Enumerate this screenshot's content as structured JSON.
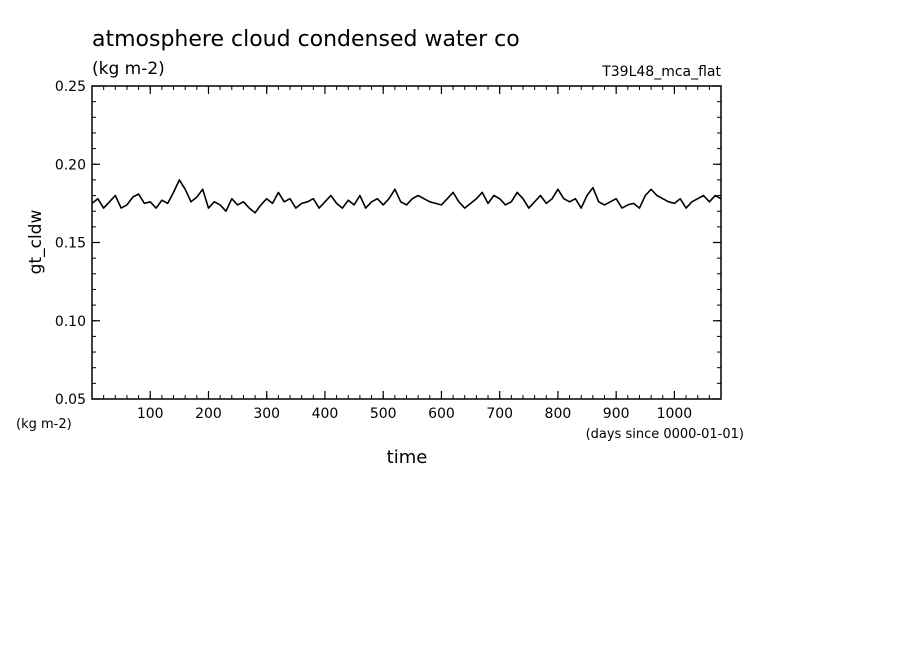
{
  "chart_data": {
    "type": "line",
    "title": "atmosphere cloud condensed water co",
    "subtitle": "(kg m-2)",
    "run_label": "T39L48_mca_flat",
    "xlabel": "time",
    "x_units": "(days since 0000-01-01)",
    "ylabel": "gt_cldw",
    "y_units": "(kg m-2)",
    "xlim": [
      0,
      1080
    ],
    "ylim": [
      0.05,
      0.25
    ],
    "x_ticks": [
      100,
      200,
      300,
      400,
      500,
      600,
      700,
      800,
      900,
      1000
    ],
    "x_tick_labels": [
      "100",
      "200",
      "300",
      "400",
      "500",
      "600",
      "700",
      "800",
      "900",
      "1000"
    ],
    "y_ticks": [
      0.05,
      0.1,
      0.15,
      0.2,
      0.25
    ],
    "y_tick_labels": [
      "0.05",
      "0.10",
      "0.15",
      "0.20",
      "0.25"
    ],
    "grid": false,
    "series": [
      {
        "color": "#000000",
        "x": [
          0,
          10,
          20,
          30,
          40,
          50,
          60,
          70,
          80,
          90,
          100,
          110,
          120,
          130,
          140,
          150,
          160,
          170,
          180,
          190,
          200,
          210,
          220,
          230,
          240,
          250,
          260,
          270,
          280,
          290,
          300,
          310,
          320,
          330,
          340,
          350,
          360,
          370,
          380,
          390,
          400,
          410,
          420,
          430,
          440,
          450,
          460,
          470,
          480,
          490,
          500,
          510,
          520,
          530,
          540,
          550,
          560,
          570,
          580,
          590,
          600,
          610,
          620,
          630,
          640,
          650,
          660,
          670,
          680,
          690,
          700,
          710,
          720,
          730,
          740,
          750,
          760,
          770,
          780,
          790,
          800,
          810,
          820,
          830,
          840,
          850,
          860,
          870,
          880,
          890,
          900,
          910,
          920,
          930,
          940,
          950,
          960,
          970,
          980,
          990,
          1000,
          1010,
          1020,
          1030,
          1040,
          1050,
          1060,
          1070,
          1080
        ],
        "y": [
          0.175,
          0.178,
          0.172,
          0.176,
          0.18,
          0.172,
          0.174,
          0.179,
          0.181,
          0.175,
          0.176,
          0.172,
          0.177,
          0.175,
          0.182,
          0.19,
          0.184,
          0.176,
          0.179,
          0.184,
          0.172,
          0.176,
          0.174,
          0.17,
          0.178,
          0.174,
          0.176,
          0.172,
          0.169,
          0.174,
          0.178,
          0.175,
          0.182,
          0.176,
          0.178,
          0.172,
          0.175,
          0.176,
          0.178,
          0.172,
          0.176,
          0.18,
          0.175,
          0.172,
          0.177,
          0.174,
          0.18,
          0.172,
          0.176,
          0.178,
          0.174,
          0.178,
          0.184,
          0.176,
          0.174,
          0.178,
          0.18,
          0.178,
          0.176,
          0.175,
          0.174,
          0.178,
          0.182,
          0.176,
          0.172,
          0.175,
          0.178,
          0.182,
          0.175,
          0.18,
          0.178,
          0.174,
          0.176,
          0.182,
          0.178,
          0.172,
          0.176,
          0.18,
          0.175,
          0.178,
          0.184,
          0.178,
          0.176,
          0.178,
          0.172,
          0.18,
          0.185,
          0.176,
          0.174,
          0.176,
          0.178,
          0.172,
          0.174,
          0.175,
          0.172,
          0.18,
          0.184,
          0.18,
          0.178,
          0.176,
          0.175,
          0.178,
          0.172,
          0.176,
          0.178,
          0.18,
          0.176,
          0.18,
          0.178
        ]
      }
    ]
  }
}
